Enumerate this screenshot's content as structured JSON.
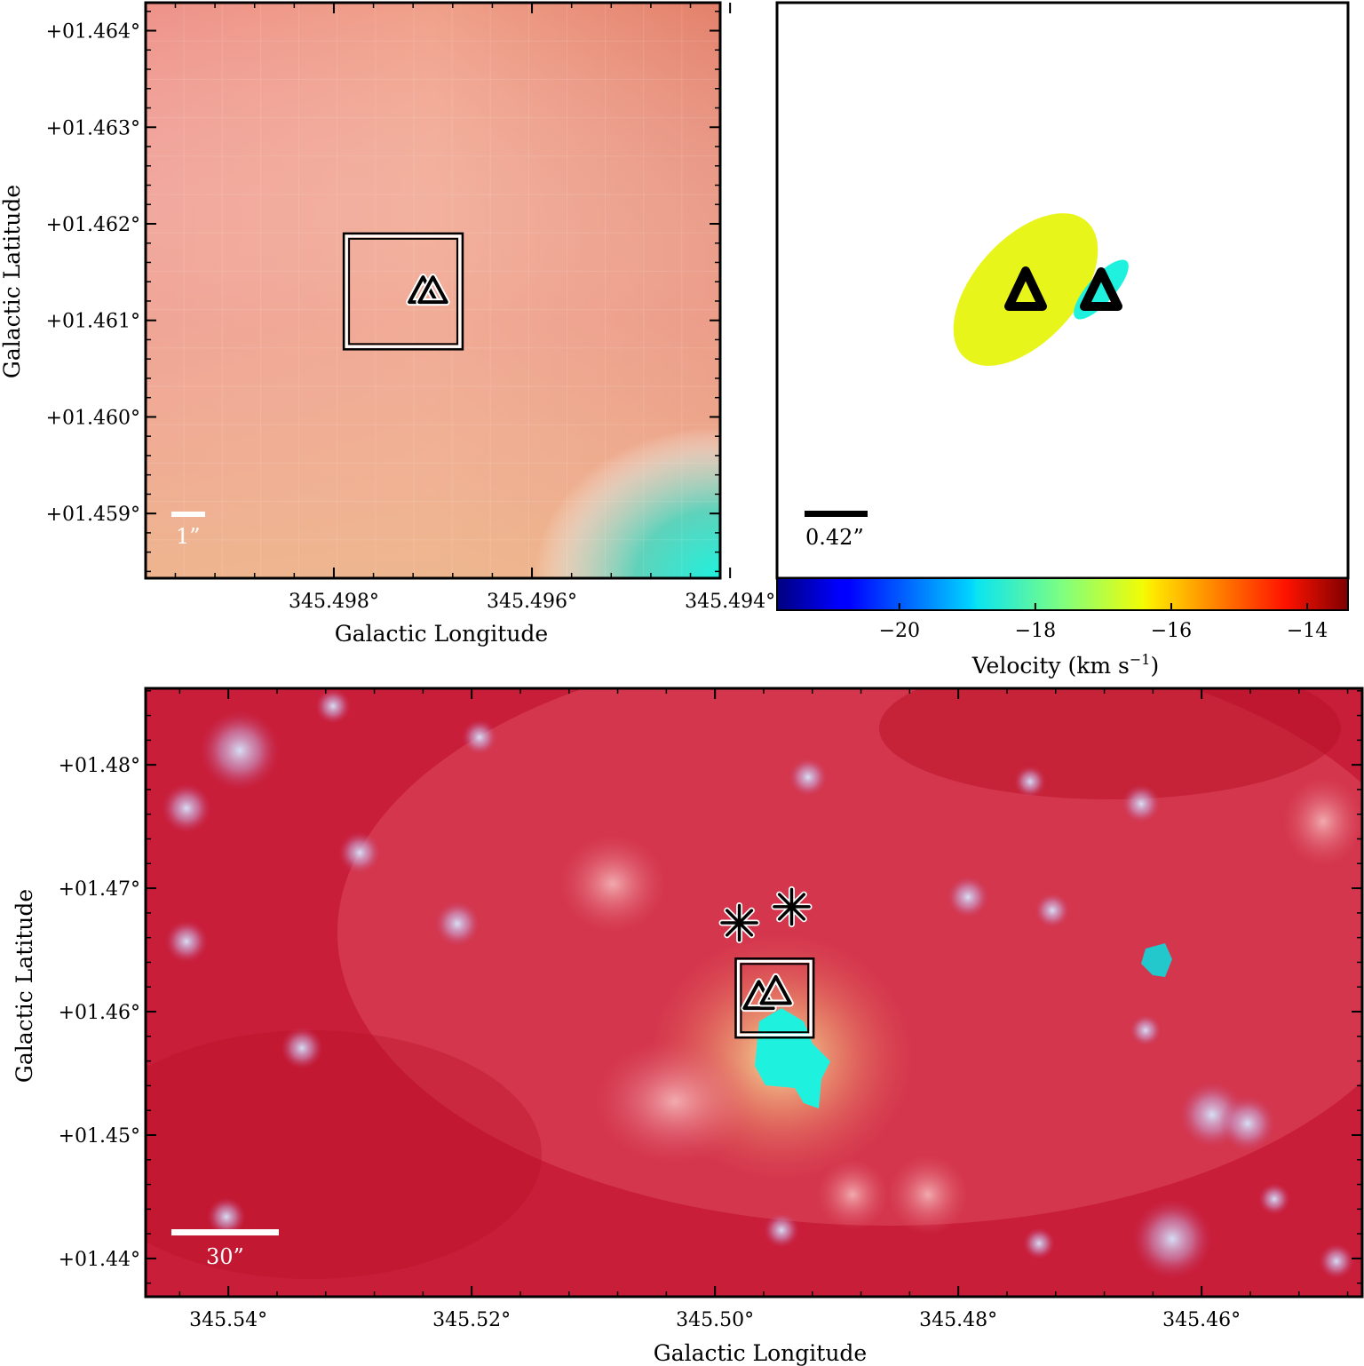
{
  "colors": {
    "bg_top_left_top": "#e3836a",
    "bg_top_left_left": "#f2aa99",
    "bg_bottom_red": "#c81e3a",
    "cyan": "#1ef2de",
    "yellow": "#e8f51a",
    "scale_bar_light": "#ffffff",
    "scale_bar_dark": "#000000"
  },
  "chart_data": [
    {
      "panel": "top-left",
      "type": "heatmap",
      "xlabel": "Galactic Longitude",
      "ylabel": "Galactic Latitude",
      "x_ticks": [
        "345.498°",
        "345.496°",
        "345.494°"
      ],
      "x_tick_values": [
        345.498,
        345.496,
        345.494
      ],
      "xlim": [
        345.4999,
        345.4941
      ],
      "y_ticks": [
        "+01.459°",
        "+01.460°",
        "+01.461°",
        "+01.462°",
        "+01.463°",
        "+01.464°"
      ],
      "y_tick_values": [
        1.459,
        1.46,
        1.461,
        1.462,
        1.463,
        1.464
      ],
      "ylim": [
        1.45833,
        1.46429
      ],
      "scale_bar_label": "1”",
      "box": {
        "l_min": 345.4967,
        "l_max": 345.4979,
        "b_min": 1.4607,
        "b_max": 1.4619
      },
      "markers": [
        {
          "symbol": "triangle",
          "l": 345.4971,
          "b": 1.4613
        },
        {
          "symbol": "triangle",
          "l": 345.497,
          "b": 1.4613
        }
      ]
    },
    {
      "panel": "top-right",
      "type": "scatter",
      "scale_bar_label": "0.42”",
      "emission": [
        {
          "color": "yellow",
          "velocity": -16.6
        },
        {
          "color": "cyan",
          "velocity": -18.4
        }
      ],
      "markers": [
        {
          "symbol": "triangle",
          "near": "yellow"
        },
        {
          "symbol": "triangle",
          "near": "cyan"
        }
      ],
      "colorbar": {
        "label": "Velocity (km s",
        "label_sup": "−1",
        "label_end": ")",
        "range": [
          -21.8,
          -13.4
        ],
        "ticks": [
          "−20",
          "−18",
          "−16",
          "−14"
        ],
        "tick_values": [
          -20,
          -18,
          -16,
          -14
        ],
        "cmap": "jet"
      }
    },
    {
      "panel": "bottom",
      "type": "heatmap",
      "xlabel": "Galactic Longitude",
      "ylabel": "Galactic Latitude",
      "x_ticks": [
        "345.54°",
        "345.52°",
        "345.50°",
        "345.48°",
        "345.46°"
      ],
      "x_tick_values": [
        345.54,
        345.52,
        345.5,
        345.48,
        345.46
      ],
      "xlim": [
        345.5468,
        345.4468
      ],
      "y_ticks": [
        "+01.44°",
        "+01.45°",
        "+01.46°",
        "+01.47°",
        "+01.48°"
      ],
      "y_tick_values": [
        1.44,
        1.45,
        1.46,
        1.47,
        1.48
      ],
      "ylim": [
        1.4369,
        1.4862
      ],
      "scale_bar_label": "30”",
      "box": {
        "l_min": 345.4919,
        "l_max": 345.4983,
        "b_min": 1.4579,
        "b_max": 1.4643
      },
      "markers": [
        {
          "symbol": "asterisk",
          "l": 345.498,
          "b": 1.4672
        },
        {
          "symbol": "asterisk",
          "l": 345.4937,
          "b": 1.4685
        },
        {
          "symbol": "triangle",
          "l": 345.4964,
          "b": 1.4612
        },
        {
          "symbol": "triangle",
          "l": 345.495,
          "b": 1.4616
        }
      ]
    }
  ]
}
